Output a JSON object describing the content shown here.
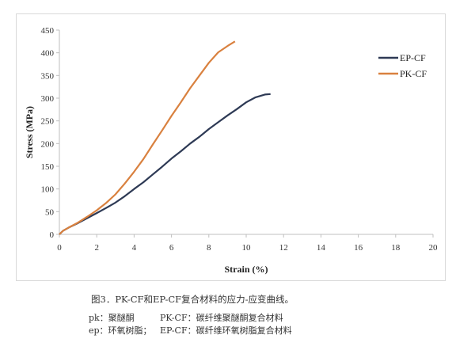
{
  "chart_data": {
    "type": "line",
    "title": "",
    "xlabel": "Strain (%)",
    "ylabel": "Stress (MPa)",
    "xlim": [
      0,
      20
    ],
    "ylim": [
      0,
      450
    ],
    "x_ticks": [
      0,
      2,
      4,
      6,
      8,
      10,
      12,
      14,
      16,
      18,
      20
    ],
    "y_ticks": [
      0,
      50,
      100,
      150,
      200,
      250,
      300,
      350,
      400,
      450
    ],
    "grid": false,
    "legend_position": "upper right",
    "series": [
      {
        "name": "EP-CF",
        "color": "#2e3a55",
        "x": [
          0,
          0.2,
          0.5,
          1,
          1.5,
          2,
          2.5,
          3,
          3.5,
          4,
          4.5,
          5,
          5.5,
          6,
          6.5,
          7,
          7.5,
          8,
          8.5,
          9,
          9.5,
          10,
          10.5,
          11,
          11.3
        ],
        "y": [
          0,
          8,
          15,
          25,
          36,
          47,
          58,
          70,
          84,
          100,
          115,
          132,
          149,
          167,
          183,
          200,
          215,
          232,
          247,
          262,
          276,
          291,
          302,
          308,
          309
        ]
      },
      {
        "name": "PK-CF",
        "color": "#d9813f",
        "x": [
          0,
          0.2,
          0.5,
          1,
          1.5,
          2,
          2.5,
          3,
          3.5,
          4,
          4.5,
          5,
          5.5,
          6,
          6.5,
          7,
          7.5,
          8,
          8.5,
          9,
          9.4
        ],
        "y": [
          0,
          8,
          15,
          26,
          39,
          53,
          69,
          88,
          112,
          138,
          166,
          198,
          229,
          261,
          291,
          322,
          350,
          378,
          401,
          415,
          425
        ]
      }
    ]
  },
  "legend": {
    "items": [
      {
        "label": "EP-CF",
        "color": "#2e3a55"
      },
      {
        "label": "PK-CF",
        "color": "#d9813f"
      }
    ]
  },
  "axes": {
    "x_title": "Strain (%)",
    "y_title": "Stress (MPa)"
  },
  "caption": "图3．PK-CF和EP-CF复合材料的应力-应变曲线。",
  "notes": [
    {
      "abbr": "pk：聚醚酮",
      "desc": "PK-CF：碳纤维聚醚酮复合材料"
    },
    {
      "abbr": "ep：环氧树脂；",
      "desc": "EP-CF：碳纤维环氧树脂复合材料"
    }
  ]
}
